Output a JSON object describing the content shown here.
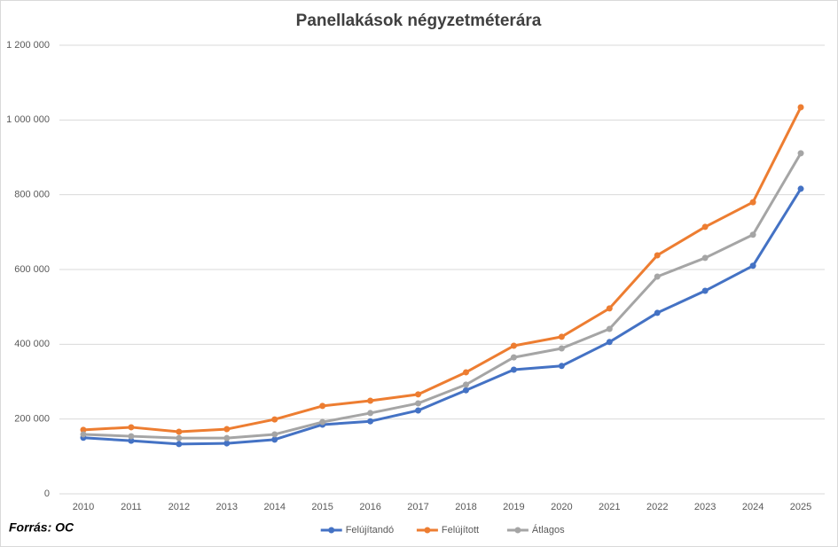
{
  "chart_data": {
    "type": "line",
    "title": "Panellakások négyzetméterára",
    "source": "Forrás: OC",
    "categories": [
      "2010",
      "2011",
      "2012",
      "2013",
      "2014",
      "2015",
      "2016",
      "2017",
      "2018",
      "2019",
      "2020",
      "2021",
      "2022",
      "2023",
      "2024",
      "2025"
    ],
    "series": [
      {
        "name": "Felújítandó",
        "color": "#4472c4",
        "values": [
          150000,
          142000,
          133000,
          135000,
          145000,
          185000,
          194000,
          223000,
          277000,
          332000,
          342000,
          406000,
          484000,
          543000,
          610000,
          816000
        ]
      },
      {
        "name": "Felújított",
        "color": "#ed7d31",
        "values": [
          171000,
          178000,
          166000,
          173000,
          199000,
          235000,
          249000,
          266000,
          325000,
          396000,
          420000,
          496000,
          638000,
          714000,
          780000,
          1034000
        ]
      },
      {
        "name": "Átlagos",
        "color": "#a5a5a5",
        "values": [
          159000,
          154000,
          149000,
          149000,
          159000,
          192000,
          216000,
          242000,
          292000,
          365000,
          389000,
          441000,
          581000,
          631000,
          693000,
          911000
        ]
      }
    ],
    "ylim": [
      0,
      1200000
    ],
    "yticks": [
      0,
      {
        "value": 200000,
        "label": "200 000"
      },
      {
        "value": 400000,
        "label": "400 000"
      },
      {
        "value": 600000,
        "label": "600 000"
      },
      {
        "value": 800000,
        "label": "800 000"
      },
      {
        "value": 1000000,
        "label": "1 000 000"
      },
      {
        "value": 1200000,
        "label": "1 200 000"
      }
    ],
    "grid": true,
    "legend": "bottom"
  }
}
